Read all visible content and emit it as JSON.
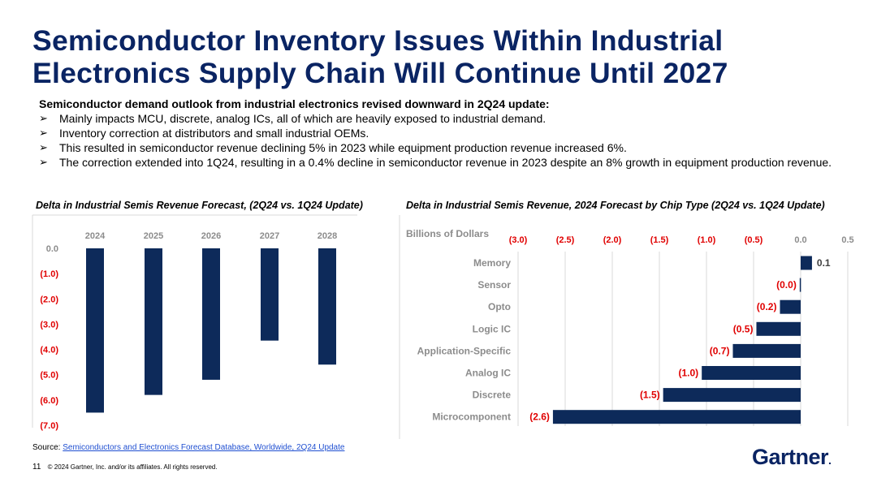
{
  "title": "Semiconductor Inventory Issues Within Industrial Electronics Supply Chain Will Continue Until 2027",
  "intro": "Semiconductor demand outlook from industrial electronics revised downward in 2Q24 update:",
  "bullets": [
    "Mainly impacts MCU, discrete, analog ICs, all of which are heavily exposed to industrial demand.",
    "Inventory correction at distributors and small industrial OEMs.",
    "This resulted in semiconductor revenue declining 5% in 2023 while equipment production revenue increased 6%.",
    "The correction extended into 1Q24, resulting in a 0.4% decline in semiconductor revenue in 2023 despite an 8% growth in equipment production revenue."
  ],
  "bullet_marker": "➢",
  "colors": {
    "navy": "#0a2463",
    "bar": "#0d2a5a",
    "negative": "#e00000",
    "axis_grey": "#8c8c8c",
    "grid": "#d9d9d9"
  },
  "chart_data": [
    {
      "type": "bar",
      "title": "Delta in Industrial Semis Revenue Forecast, (2Q24 vs. 1Q24 Update)",
      "categories": [
        "2024",
        "2025",
        "2026",
        "2027",
        "2028"
      ],
      "values": [
        -6.5,
        -5.8,
        -5.2,
        -3.65,
        -4.6
      ],
      "ylim": [
        -7.0,
        0.0
      ],
      "yticks": [
        0,
        -1,
        -2,
        -3,
        -4,
        -5,
        -6,
        -7
      ],
      "ytick_labels": [
        "0.0",
        "(1.0)",
        "(2.0)",
        "(3.0)",
        "(4.0)",
        "(5.0)",
        "(6.0)",
        "(7.0)"
      ],
      "xlabel": "",
      "ylabel": "",
      "grid": false
    },
    {
      "type": "bar",
      "orientation": "horizontal",
      "title": "Delta in Industrial Semis Revenue, 2024 Forecast by Chip Type (2Q24 vs. 1Q24 Update)",
      "unit_label": "Billions of Dollars",
      "categories": [
        "Memory",
        "Sensor",
        "Opto",
        "Logic IC",
        "Application-Specific",
        "Analog IC",
        "Discrete",
        "Microcomponent"
      ],
      "values": [
        0.12,
        -0.01,
        -0.22,
        -0.47,
        -0.72,
        -1.05,
        -1.46,
        -2.63
      ],
      "data_labels": [
        "0.1",
        "(0.0)",
        "(0.2)",
        "(0.5)",
        "(0.7)",
        "(1.0)",
        "(1.5)",
        "(2.6)"
      ],
      "xlim": [
        -3.0,
        0.5
      ],
      "xticks": [
        -3.0,
        -2.5,
        -2.0,
        -1.5,
        -1.0,
        -0.5,
        0.0,
        0.5
      ],
      "xtick_labels": [
        "(3.0)",
        "(2.5)",
        "(2.0)",
        "(1.5)",
        "(1.0)",
        "(0.5)",
        "0.0",
        "0.5"
      ],
      "grid": true
    }
  ],
  "source": {
    "label": "Source:",
    "link_text": "Semiconductors and Electronics Forecast Database, Worldwide, 2Q24 Update"
  },
  "footer": {
    "page": "11",
    "copyright": "© 2024 Gartner, Inc. and/or its affiliates. All rights reserved."
  },
  "logo": {
    "text": "Gartner",
    "dot": "."
  }
}
